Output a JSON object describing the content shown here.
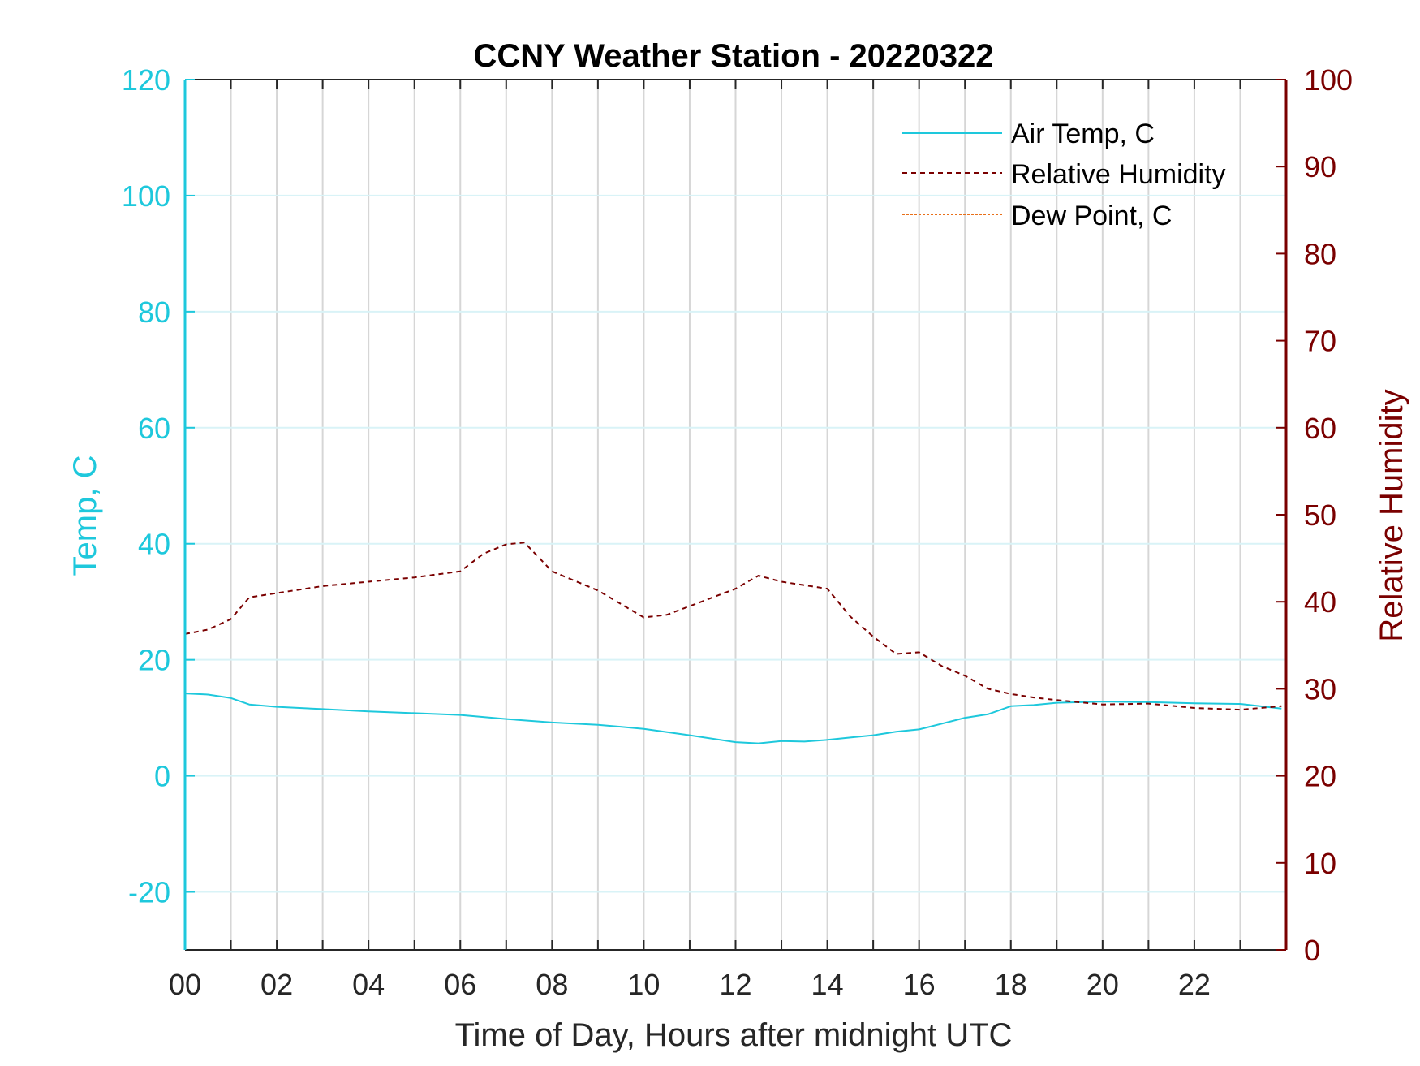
{
  "colors": {
    "air_temp": "#1ec8dc",
    "relative_humidity": "#7a0000",
    "dew_point": "#e8701a",
    "left_axis": "#1ec8dc",
    "right_axis": "#7a0000",
    "grid": "#d6d6d6",
    "hgrid": "#d9f3f7"
  },
  "chart_data": {
    "type": "line",
    "title": "CCNY Weather Station - 20220322",
    "xlabel": "Time of Day, Hours after midnight UTC",
    "ylabel_left": "Temp, C",
    "ylabel_right": "Relative Humidity",
    "xlim": [
      0,
      24
    ],
    "ylim_left": [
      -30,
      120
    ],
    "ylim_right": [
      0,
      100
    ],
    "x_ticks": [
      0,
      2,
      4,
      6,
      8,
      10,
      12,
      14,
      16,
      18,
      20,
      22
    ],
    "x_tick_labels": [
      "00",
      "02",
      "04",
      "06",
      "08",
      "10",
      "12",
      "14",
      "16",
      "18",
      "20",
      "22"
    ],
    "y_left_ticks": [
      120,
      100,
      80,
      60,
      40,
      20,
      0,
      -20
    ],
    "y_right_ticks": [
      100,
      90,
      80,
      70,
      60,
      50,
      40,
      30,
      20,
      10,
      0
    ],
    "grid": "vertical every hour; horizontal at left ticks",
    "legend_position": "top-right",
    "series": [
      {
        "name": "Air Temp, C",
        "axis": "left",
        "style": "solid",
        "x": [
          0,
          0.5,
          1,
          1.4,
          2,
          3,
          4,
          5,
          6,
          7,
          8,
          9,
          10,
          11,
          12,
          12.5,
          13,
          13.5,
          14,
          14.5,
          15,
          15.5,
          16,
          16.5,
          17,
          17.5,
          18,
          18.5,
          19,
          20,
          21,
          22,
          23,
          23.9
        ],
        "values": [
          14.2,
          14.0,
          13.4,
          12.3,
          11.9,
          11.5,
          11.1,
          10.8,
          10.5,
          9.8,
          9.2,
          8.8,
          8.1,
          7.0,
          5.8,
          5.6,
          6.0,
          5.9,
          6.2,
          6.6,
          7.0,
          7.6,
          8.0,
          9.0,
          10.0,
          10.6,
          12.0,
          12.2,
          12.6,
          12.8,
          12.7,
          12.5,
          12.4,
          11.6
        ]
      },
      {
        "name": "Relative Humidity",
        "axis": "right",
        "style": "dashed",
        "x": [
          0,
          0.5,
          1,
          1.4,
          2,
          3,
          4,
          5,
          6,
          6.5,
          7,
          7.4,
          8,
          9,
          10,
          10.5,
          11,
          12,
          12.5,
          13,
          14,
          14.5,
          15,
          15.5,
          16,
          16.5,
          17,
          17.5,
          18,
          18.5,
          19,
          20,
          21,
          22,
          23,
          23.9
        ],
        "values": [
          36.3,
          36.8,
          38.0,
          40.5,
          41.0,
          41.8,
          42.3,
          42.8,
          43.5,
          45.5,
          46.6,
          46.8,
          43.5,
          41.3,
          38.2,
          38.5,
          39.5,
          41.5,
          43.0,
          42.3,
          41.5,
          38.3,
          36.0,
          34.0,
          34.2,
          32.6,
          31.5,
          30.0,
          29.4,
          29.0,
          28.7,
          28.2,
          28.3,
          27.8,
          27.6,
          28.0
        ]
      },
      {
        "name": "Dew Point, C",
        "axis": "left",
        "style": "dashed",
        "x": [],
        "values": []
      }
    ]
  }
}
